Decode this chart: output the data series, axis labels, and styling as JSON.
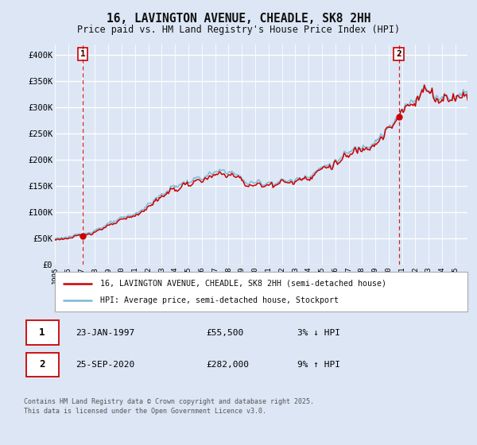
{
  "title_line1": "16, LAVINGTON AVENUE, CHEADLE, SK8 2HH",
  "title_line2": "Price paid vs. HM Land Registry's House Price Index (HPI)",
  "bg_color": "#dce6f5",
  "plot_bg_color": "#dce6f5",
  "grid_color": "#ffffff",
  "line1_color": "#cc0000",
  "line2_color": "#7ab8d4",
  "sale1_x": 1997.08,
  "sale1_price": 55500,
  "sale1_label": "1",
  "sale2_x": 2020.75,
  "sale2_price": 282000,
  "sale2_label": "2",
  "legend_label1": "16, LAVINGTON AVENUE, CHEADLE, SK8 2HH (semi-detached house)",
  "legend_label2": "HPI: Average price, semi-detached house, Stockport",
  "table_row1": [
    "1",
    "23-JAN-1997",
    "£55,500",
    "3% ↓ HPI"
  ],
  "table_row2": [
    "2",
    "25-SEP-2020",
    "£282,000",
    "9% ↑ HPI"
  ],
  "footer": "Contains HM Land Registry data © Crown copyright and database right 2025.\nThis data is licensed under the Open Government Licence v3.0.",
  "ylim": [
    0,
    420000
  ],
  "xmin": 1995.0,
  "xmax": 2025.9,
  "yticks": [
    0,
    50000,
    100000,
    150000,
    200000,
    250000,
    300000,
    350000,
    400000
  ],
  "ytick_labels": [
    "£0",
    "£50K",
    "£100K",
    "£150K",
    "£200K",
    "£250K",
    "£300K",
    "£350K",
    "£400K"
  ]
}
